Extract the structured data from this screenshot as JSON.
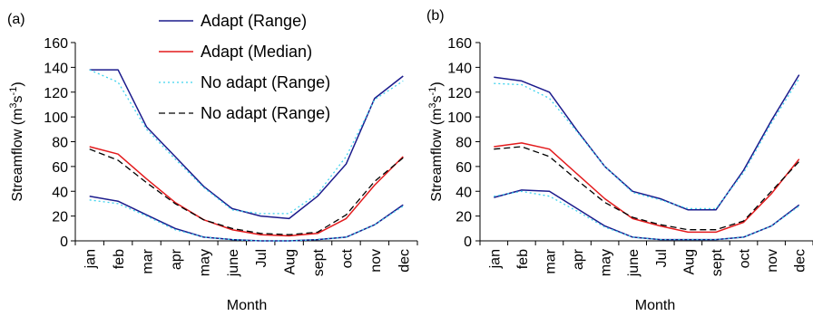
{
  "chart_data": [
    {
      "type": "line",
      "panel_label": "(a)",
      "xlabel": "Month",
      "ylabel": "Streamflow (m³s⁻¹)",
      "ylabel_main": "Streamflow (m",
      "ylabel_sup1": "3",
      "ylabel_mid": "s",
      "ylabel_sup2": "-1",
      "ylabel_end": ")",
      "ylim": [
        0,
        160
      ],
      "yticks": [
        0,
        20,
        40,
        60,
        80,
        100,
        120,
        140,
        160
      ],
      "categories": [
        "jan",
        "feb",
        "mar",
        "apr",
        "may",
        "june",
        "Jul",
        "Aug",
        "sept",
        "oct",
        "nov",
        "dec"
      ],
      "legend": {
        "position": "top-center"
      },
      "series": [
        {
          "name": "Adapt (Range)",
          "color": "#1b1b8c",
          "style": "solid",
          "group": "adapt_upper",
          "values": [
            138,
            138,
            92,
            68,
            44,
            26,
            20,
            18,
            36,
            62,
            115,
            133
          ]
        },
        {
          "name": "Adapt (Range)",
          "color": "#1b1b8c",
          "style": "solid",
          "group": "adapt_lower",
          "legend": false,
          "values": [
            36,
            32,
            21,
            10,
            3,
            1,
            0,
            0,
            1,
            3,
            13,
            29
          ]
        },
        {
          "name": "Adapt (Median)",
          "color": "#e31a1c",
          "style": "solid",
          "group": "adapt_median",
          "values": [
            76,
            70,
            50,
            31,
            17,
            9,
            5,
            4,
            6,
            18,
            45,
            68
          ]
        },
        {
          "name": "No adapt (Range)",
          "color": "#3fd3ee",
          "style": "dotted",
          "group": "noadapt_upper",
          "values": [
            138,
            128,
            90,
            66,
            43,
            25,
            22,
            22,
            38,
            68,
            114,
            129
          ]
        },
        {
          "name": "No adapt (Range)",
          "color": "#3fd3ee",
          "style": "dotted",
          "group": "noadapt_lower",
          "legend": false,
          "values": [
            33,
            30,
            20,
            9,
            3,
            1,
            0,
            0,
            1,
            3,
            13,
            28
          ]
        },
        {
          "name": "No adapt (Range)",
          "color": "#000000",
          "style": "dashed",
          "group": "noadapt_median",
          "values": [
            74,
            65,
            47,
            30,
            17,
            10,
            6,
            5,
            7,
            21,
            48,
            67
          ]
        }
      ]
    },
    {
      "type": "line",
      "panel_label": "(b)",
      "xlabel": "Month",
      "ylabel": "Streamflow (m³s⁻¹)",
      "ylabel_main": "Streamflow (m",
      "ylabel_sup1": "3",
      "ylabel_mid": "s",
      "ylabel_sup2": "-1",
      "ylabel_end": ")",
      "ylim": [
        0,
        160
      ],
      "yticks": [
        0,
        20,
        40,
        60,
        80,
        100,
        120,
        140,
        160
      ],
      "categories": [
        "jan",
        "feb",
        "mar",
        "apr",
        "may",
        "june",
        "Jul",
        "Aug",
        "sept",
        "oct",
        "nov",
        "dec"
      ],
      "series": [
        {
          "color": "#1b1b8c",
          "style": "solid",
          "group": "adapt_upper",
          "values": [
            132,
            129,
            120,
            89,
            60,
            40,
            34,
            25,
            25,
            57,
            97,
            134
          ]
        },
        {
          "color": "#1b1b8c",
          "style": "solid",
          "group": "adapt_lower",
          "values": [
            35,
            41,
            40,
            26,
            12,
            3,
            1,
            1,
            1,
            3,
            12,
            29
          ]
        },
        {
          "color": "#e31a1c",
          "style": "solid",
          "group": "adapt_median",
          "values": [
            76,
            79,
            74,
            54,
            34,
            18,
            12,
            7,
            7,
            15,
            38,
            66
          ]
        },
        {
          "color": "#3fd3ee",
          "style": "dotted",
          "group": "noadapt_upper",
          "values": [
            127,
            126,
            115,
            88,
            60,
            39,
            33,
            26,
            26,
            55,
            95,
            131
          ]
        },
        {
          "color": "#3fd3ee",
          "style": "dotted",
          "group": "noadapt_lower",
          "values": [
            36,
            40,
            36,
            24,
            11,
            3,
            1,
            1,
            1,
            3,
            12,
            28
          ]
        },
        {
          "color": "#000000",
          "style": "dashed",
          "group": "noadapt_median",
          "values": [
            74,
            76,
            68,
            49,
            31,
            19,
            13,
            9,
            9,
            16,
            40,
            64
          ]
        }
      ]
    }
  ]
}
